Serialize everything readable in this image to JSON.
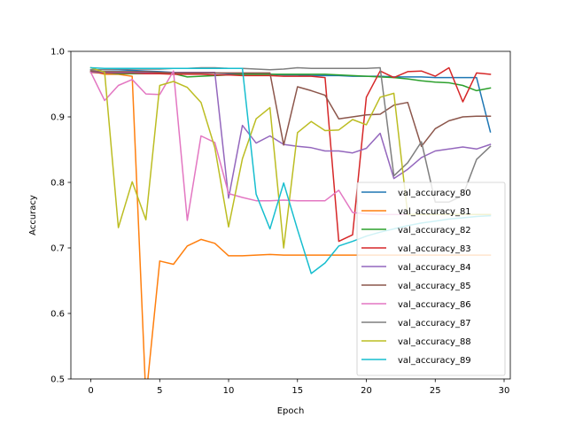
{
  "chart_data": {
    "type": "line",
    "xlabel": "Epoch",
    "ylabel": "Accuracy",
    "xlim": [
      -1.45,
      30.45
    ],
    "ylim": [
      0.5,
      1.0
    ],
    "x_ticks": [
      0,
      5,
      10,
      15,
      20,
      25,
      30
    ],
    "y_ticks": [
      0.5,
      0.6,
      0.7,
      0.8,
      0.9,
      1.0
    ],
    "y_tick_labels": [
      "0.5",
      "0.6",
      "0.7",
      "0.8",
      "0.9",
      "1.0"
    ],
    "grid": false,
    "legend_position": "lower right",
    "x": [
      0,
      1,
      2,
      3,
      4,
      5,
      6,
      7,
      8,
      9,
      10,
      11,
      12,
      13,
      14,
      15,
      16,
      17,
      18,
      19,
      20,
      21,
      22,
      23,
      24,
      25,
      26,
      27,
      28,
      29
    ],
    "series": [
      {
        "name": "val_accuracy_80",
        "color": "#1f77b4",
        "values": [
          0.972,
          0.972,
          0.972,
          0.971,
          0.97,
          0.969,
          0.968,
          0.968,
          0.967,
          0.967,
          0.966,
          0.966,
          0.965,
          0.965,
          0.964,
          0.964,
          0.963,
          0.963,
          0.963,
          0.962,
          0.962,
          0.962,
          0.961,
          0.961,
          0.961,
          0.96,
          0.96,
          0.96,
          0.96,
          0.877
        ]
      },
      {
        "name": "val_accuracy_81",
        "color": "#ff7f0e",
        "values": [
          0.97,
          0.965,
          0.965,
          0.962,
          0.47,
          0.68,
          0.675,
          0.703,
          0.713,
          0.707,
          0.688,
          0.688,
          0.689,
          0.69,
          0.689,
          0.689,
          0.689,
          0.689,
          0.689,
          0.689,
          0.689,
          0.689,
          0.689,
          0.689,
          0.689,
          0.689,
          0.689,
          0.689,
          0.689,
          0.689
        ]
      },
      {
        "name": "val_accuracy_82",
        "color": "#2ca02c",
        "values": [
          0.968,
          0.967,
          0.966,
          0.966,
          0.966,
          0.966,
          0.966,
          0.961,
          0.962,
          0.963,
          0.964,
          0.965,
          0.965,
          0.965,
          0.965,
          0.965,
          0.965,
          0.965,
          0.964,
          0.963,
          0.962,
          0.961,
          0.96,
          0.958,
          0.955,
          0.953,
          0.952,
          0.948,
          0.94,
          0.944
        ]
      },
      {
        "name": "val_accuracy_83",
        "color": "#d62728",
        "values": [
          0.968,
          0.967,
          0.967,
          0.967,
          0.966,
          0.966,
          0.965,
          0.965,
          0.965,
          0.964,
          0.964,
          0.963,
          0.963,
          0.963,
          0.962,
          0.962,
          0.962,
          0.96,
          0.71,
          0.72,
          0.93,
          0.97,
          0.96,
          0.969,
          0.97,
          0.962,
          0.975,
          0.923,
          0.967,
          0.965
        ]
      },
      {
        "name": "val_accuracy_84",
        "color": "#9467bd",
        "values": [
          0.969,
          0.968,
          0.968,
          0.968,
          0.968,
          0.968,
          0.968,
          0.968,
          0.968,
          0.968,
          0.776,
          0.887,
          0.86,
          0.871,
          0.858,
          0.855,
          0.853,
          0.848,
          0.848,
          0.845,
          0.852,
          0.875,
          0.806,
          0.82,
          0.838,
          0.848,
          0.851,
          0.854,
          0.851,
          0.858
        ]
      },
      {
        "name": "val_accuracy_85",
        "color": "#8c564b",
        "values": [
          0.97,
          0.969,
          0.969,
          0.969,
          0.969,
          0.968,
          0.967,
          0.967,
          0.967,
          0.967,
          0.967,
          0.967,
          0.967,
          0.967,
          0.857,
          0.946,
          0.94,
          0.933,
          0.897,
          0.9,
          0.903,
          0.904,
          0.918,
          0.922,
          0.855,
          0.882,
          0.894,
          0.9,
          0.901,
          0.901
        ]
      },
      {
        "name": "val_accuracy_86",
        "color": "#e377c2",
        "values": [
          0.968,
          0.925,
          0.948,
          0.957,
          0.935,
          0.934,
          0.97,
          0.742,
          0.871,
          0.861,
          0.783,
          0.777,
          0.772,
          0.772,
          0.773,
          0.772,
          0.772,
          0.772,
          0.788,
          0.754,
          0.752,
          0.751,
          0.751,
          0.751,
          0.751,
          0.751,
          0.751,
          0.751,
          0.751,
          0.751
        ]
      },
      {
        "name": "val_accuracy_87",
        "color": "#7f7f7f",
        "values": [
          0.972,
          0.972,
          0.973,
          0.973,
          0.973,
          0.973,
          0.974,
          0.974,
          0.975,
          0.975,
          0.974,
          0.974,
          0.973,
          0.972,
          0.973,
          0.975,
          0.974,
          0.974,
          0.974,
          0.974,
          0.974,
          0.975,
          0.81,
          0.83,
          0.862,
          0.77,
          0.77,
          0.78,
          0.835,
          0.855
        ]
      },
      {
        "name": "val_accuracy_88",
        "color": "#bcbd22",
        "values": [
          0.975,
          0.968,
          0.731,
          0.801,
          0.743,
          0.948,
          0.954,
          0.945,
          0.922,
          0.853,
          0.732,
          0.836,
          0.897,
          0.914,
          0.7,
          0.876,
          0.893,
          0.879,
          0.88,
          0.896,
          0.888,
          0.93,
          0.936,
          0.751,
          0.751,
          0.751,
          0.751,
          0.751,
          0.751,
          0.751
        ]
      },
      {
        "name": "val_accuracy_89",
        "color": "#17becf",
        "values": [
          0.975,
          0.974,
          0.974,
          0.974,
          0.974,
          0.974,
          0.974,
          0.974,
          0.974,
          0.974,
          0.974,
          0.974,
          0.782,
          0.729,
          0.799,
          0.728,
          0.661,
          0.677,
          0.703,
          0.71,
          0.718,
          0.724,
          0.729,
          0.734,
          0.738,
          0.741,
          0.744,
          0.746,
          0.748,
          0.749
        ]
      }
    ]
  }
}
